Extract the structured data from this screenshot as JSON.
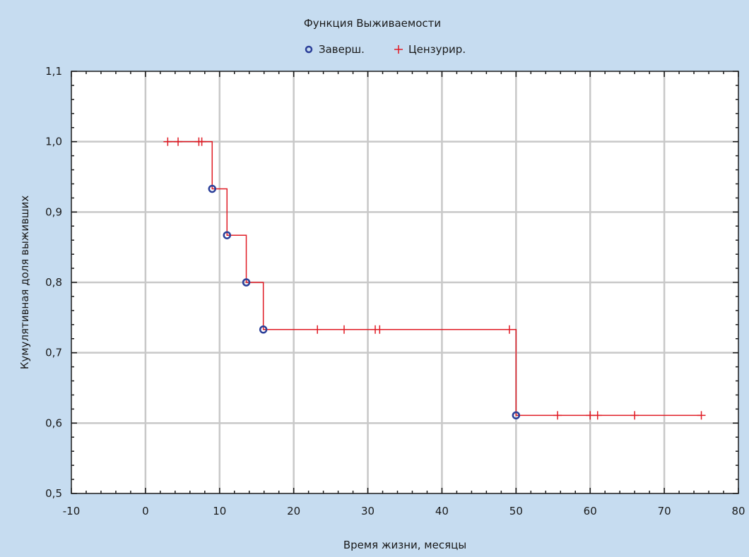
{
  "chart_data": {
    "type": "line",
    "title": "Функция Выживаемости",
    "xlabel": "Время жизни, месяцы",
    "ylabel": "Кумулятивная доля выживших",
    "xlim": [
      -10,
      80
    ],
    "ylim": [
      0.5,
      1.1
    ],
    "x_ticks": [
      -10,
      0,
      10,
      20,
      30,
      40,
      50,
      60,
      70,
      80
    ],
    "x_tick_labels": [
      "-10",
      "0",
      "10",
      "20",
      "30",
      "40",
      "50",
      "60",
      "70",
      "80"
    ],
    "y_ticks": [
      0.5,
      0.6,
      0.7,
      0.8,
      0.9,
      1.0,
      1.1
    ],
    "y_tick_labels": [
      "0,5",
      "0,6",
      "0,7",
      "0,8",
      "0,9",
      "1,0",
      "1,1"
    ],
    "grid": true,
    "legend_position": "top-center",
    "legend": [
      {
        "name": "Заверш.",
        "marker": "circle",
        "color": "#2b3f99"
      },
      {
        "name": "Цензурир.",
        "marker": "plus",
        "color": "#e01b24"
      }
    ],
    "step_color": "#e01b24",
    "step_points": [
      {
        "x": 3,
        "y": 1.0
      },
      {
        "x": 9,
        "y": 0.933
      },
      {
        "x": 11,
        "y": 0.867
      },
      {
        "x": 13.6,
        "y": 0.8
      },
      {
        "x": 15.9,
        "y": 0.733
      },
      {
        "x": 50,
        "y": 0.611
      },
      {
        "x": 75,
        "y": 0.611
      }
    ],
    "series": [
      {
        "name": "Заверш.",
        "marker": "circle",
        "color": "#2b3f99",
        "x": [
          9,
          11,
          13.6,
          15.9,
          50
        ],
        "y": [
          0.933,
          0.867,
          0.8,
          0.733,
          0.611
        ]
      },
      {
        "name": "Цензурир.",
        "marker": "plus",
        "color": "#e01b24",
        "x": [
          3,
          4.4,
          7.2,
          7.6,
          23.2,
          26.8,
          31,
          31.6,
          49.1,
          55.6,
          60,
          61,
          66,
          75
        ],
        "y": [
          1.0,
          1.0,
          1.0,
          1.0,
          0.733,
          0.733,
          0.733,
          0.733,
          0.733,
          0.611,
          0.611,
          0.611,
          0.611,
          0.611
        ]
      }
    ]
  }
}
